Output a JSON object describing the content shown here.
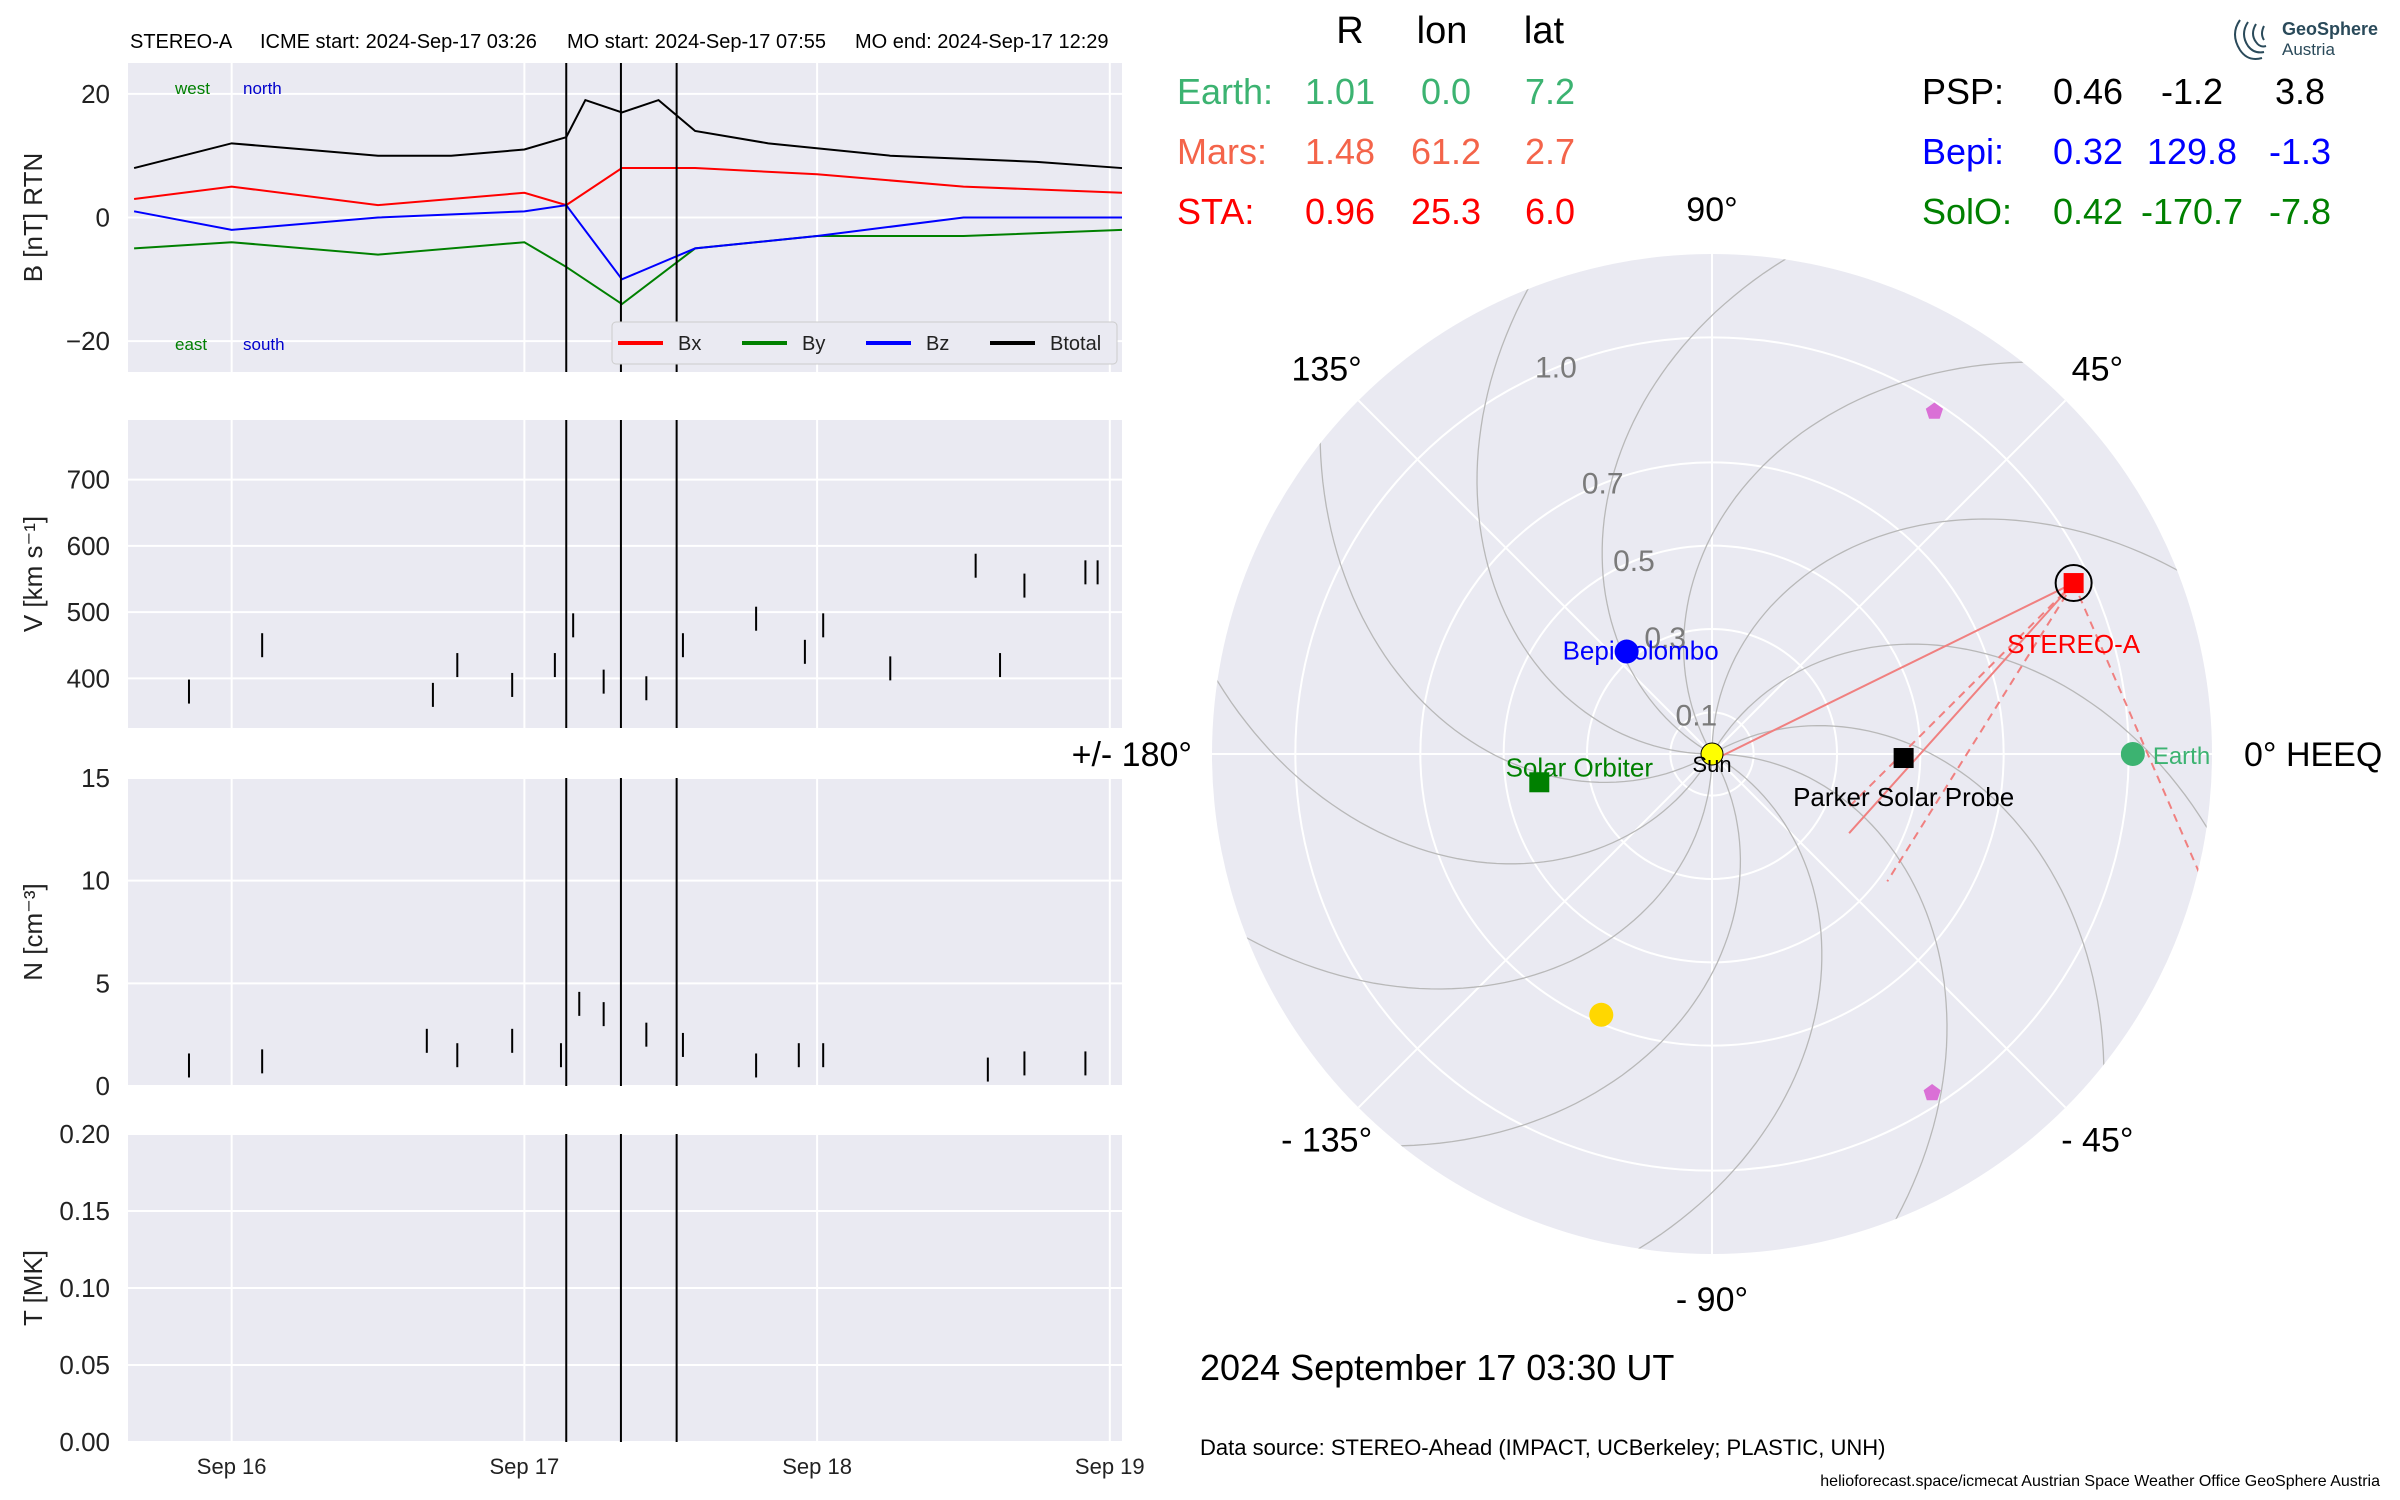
{
  "header": {
    "spacecraft": "STEREO-A",
    "icme_start": "ICME start: 2024-Sep-17 03:26",
    "mo_start": "MO start: 2024-Sep-17 07:55",
    "mo_end": "MO end: 2024-Sep-17 12:29"
  },
  "logo": {
    "line1": "GeoSphere",
    "line2": "Austria"
  },
  "positions_table": {
    "headers": [
      "R",
      "lon",
      "lat"
    ],
    "left_rows": [
      {
        "name": "Earth:",
        "r": "1.01",
        "lon": "0.0",
        "lat": "7.2",
        "color": "#3cb371"
      },
      {
        "name": "Mars:",
        "r": "1.48",
        "lon": "61.2",
        "lat": "2.7",
        "color": "#f4644a"
      },
      {
        "name": "STA:",
        "r": "0.96",
        "lon": "25.3",
        "lat": "6.0",
        "color": "#ff0000"
      }
    ],
    "right_rows": [
      {
        "name": "PSP:",
        "r": "0.46",
        "lon": "-1.2",
        "lat": "3.8",
        "color": "#000000"
      },
      {
        "name": "Bepi:",
        "r": "0.32",
        "lon": "129.8",
        "lat": "-1.3",
        "color": "#0000ff"
      },
      {
        "name": "SolO:",
        "r": "0.42",
        "lon": "-170.7",
        "lat": "-7.8",
        "color": "#008000"
      }
    ]
  },
  "polar_plot": {
    "angle_labels": [
      "90°",
      "45°",
      "0° HEEQ",
      "- 45°",
      "- 90°",
      "- 135°",
      "+/- 180°",
      "135°"
    ],
    "radial_labels": [
      "1.0",
      "0.7",
      "0.5",
      "0.3",
      "0.1"
    ],
    "rmax": 1.2,
    "bodies": [
      {
        "name": "Sun",
        "r": 0.0,
        "lon": 0.0,
        "color": "#ffff00",
        "marker": "circle"
      },
      {
        "name": "Earth",
        "r": 1.01,
        "lon": 0.0,
        "color": "#3cb371",
        "marker": "circle"
      },
      {
        "name": "STEREO-A",
        "r": 0.96,
        "lon": 25.3,
        "color": "#ff0000",
        "marker": "square"
      },
      {
        "name": "Parker Solar Probe",
        "r": 0.46,
        "lon": -1.2,
        "color": "#000000",
        "marker": "square"
      },
      {
        "name": "BepiColombo",
        "r": 0.32,
        "lon": 129.8,
        "color": "#0000ff",
        "marker": "circle"
      },
      {
        "name": "Solar Orbiter",
        "r": 0.42,
        "lon": -170.7,
        "color": "#008000",
        "marker": "square"
      },
      {
        "name": "",
        "r": 0.98,
        "lon": 57.0,
        "color": "#da70d6",
        "marker": "pentagon"
      },
      {
        "name": "",
        "r": 0.97,
        "lon": -57.0,
        "color": "#da70d6",
        "marker": "pentagon"
      },
      {
        "name": "",
        "r": 0.68,
        "lon": -113.0,
        "color": "#ffd700",
        "marker": "circle"
      }
    ]
  },
  "date_label": "2024 September 17  03:30 UT",
  "data_source": "Data source: STEREO-Ahead (IMPACT, UCBerkeley; PLASTIC, UNH)",
  "footer": "helioforecast.space/icmecat   Austrian Space Weather Office   GeoSphere Austria",
  "chart_data": [
    {
      "type": "line",
      "ylabel": "B [nT] RTN",
      "ylim": [
        -25,
        25
      ],
      "yticks": [
        "20",
        "0",
        "−20"
      ],
      "annotations": {
        "west": "west",
        "north": "north",
        "east": "east",
        "south": "south"
      },
      "legend": [
        "Bx",
        "By",
        "Bz",
        "Btotal"
      ],
      "legend_colors": [
        "#ff0000",
        "#008000",
        "#0000ff",
        "#000000"
      ],
      "legend_placement": "lower right",
      "xlim": [
        "2024-09-15 15:30",
        "2024-09-19 01:00"
      ],
      "series": [
        {
          "name": "Btotal",
          "color": "#000000",
          "x": [
            "2024-09-15 16:00",
            "2024-09-16 00:00",
            "2024-09-16 06:00",
            "2024-09-16 12:00",
            "2024-09-16 18:00",
            "2024-09-17 00:00",
            "2024-09-17 03:26",
            "2024-09-17 05:00",
            "2024-09-17 08:00",
            "2024-09-17 11:00",
            "2024-09-17 14:00",
            "2024-09-17 20:00",
            "2024-09-18 06:00",
            "2024-09-18 18:00",
            "2024-09-19 01:00"
          ],
          "y": [
            8,
            12,
            11,
            10,
            10,
            11,
            13,
            19,
            17,
            19,
            14,
            12,
            10,
            9,
            8
          ]
        },
        {
          "name": "Bx",
          "color": "#ff0000",
          "x": [
            "2024-09-15 16:00",
            "2024-09-16 00:00",
            "2024-09-16 12:00",
            "2024-09-17 00:00",
            "2024-09-17 03:26",
            "2024-09-17 08:00",
            "2024-09-17 14:00",
            "2024-09-18 00:00",
            "2024-09-18 12:00",
            "2024-09-19 01:00"
          ],
          "y": [
            3,
            5,
            2,
            4,
            2,
            8,
            8,
            7,
            5,
            4
          ]
        },
        {
          "name": "By",
          "color": "#008000",
          "x": [
            "2024-09-15 16:00",
            "2024-09-16 00:00",
            "2024-09-16 12:00",
            "2024-09-17 00:00",
            "2024-09-17 03:26",
            "2024-09-17 08:00",
            "2024-09-17 14:00",
            "2024-09-18 00:00",
            "2024-09-18 12:00",
            "2024-09-19 01:00"
          ],
          "y": [
            -5,
            -4,
            -6,
            -4,
            -8,
            -14,
            -5,
            -3,
            -3,
            -2
          ]
        },
        {
          "name": "Bz",
          "color": "#0000ff",
          "x": [
            "2024-09-15 16:00",
            "2024-09-16 00:00",
            "2024-09-16 12:00",
            "2024-09-17 00:00",
            "2024-09-17 03:26",
            "2024-09-17 08:00",
            "2024-09-17 14:00",
            "2024-09-18 00:00",
            "2024-09-18 12:00",
            "2024-09-19 01:00"
          ],
          "y": [
            1,
            -2,
            0,
            1,
            2,
            -10,
            -5,
            -3,
            0,
            0
          ]
        }
      ]
    },
    {
      "type": "line",
      "ylabel": "V [km s⁻¹]",
      "ylim": [
        325,
        790
      ],
      "yticks": [
        "700",
        "600",
        "500",
        "400"
      ],
      "xlim": [
        "2024-09-15 15:30",
        "2024-09-19 01:00"
      ],
      "series": [
        {
          "name": "",
          "color": "#000000",
          "x": [
            "2024-09-15 20:30",
            "2024-09-16 02:30",
            "2024-09-16 16:30",
            "2024-09-16 18:30",
            "2024-09-16 23:00",
            "2024-09-17 02:30",
            "2024-09-17 04:00",
            "2024-09-17 06:30",
            "2024-09-17 10:00",
            "2024-09-17 13:00",
            "2024-09-17 19:00",
            "2024-09-17 23:00",
            "2024-09-18 00:30",
            "2024-09-18 06:00",
            "2024-09-18 13:00",
            "2024-09-18 15:00",
            "2024-09-18 17:00",
            "2024-09-18 22:00",
            "2024-09-18 23:00"
          ],
          "y": [
            380,
            450,
            375,
            420,
            390,
            420,
            480,
            395,
            385,
            450,
            490,
            440,
            480,
            415,
            570,
            420,
            540,
            560,
            560
          ]
        }
      ]
    },
    {
      "type": "line",
      "ylabel": "N [cm⁻³]",
      "ylim": [
        0,
        15
      ],
      "yticks": [
        "15",
        "10",
        "5",
        "0"
      ],
      "xlim": [
        "2024-09-15 15:30",
        "2024-09-19 01:00"
      ],
      "series": [
        {
          "name": "",
          "color": "#000000",
          "x": [
            "2024-09-15 20:30",
            "2024-09-16 02:30",
            "2024-09-16 16:00",
            "2024-09-16 18:30",
            "2024-09-16 23:00",
            "2024-09-17 03:00",
            "2024-09-17 04:30",
            "2024-09-17 06:30",
            "2024-09-17 10:00",
            "2024-09-17 13:00",
            "2024-09-17 19:00",
            "2024-09-17 22:30",
            "2024-09-18 00:30",
            "2024-09-18 14:00",
            "2024-09-18 17:00",
            "2024-09-18 22:00"
          ],
          "y": [
            1.0,
            1.2,
            2.2,
            1.5,
            2.2,
            1.5,
            4.0,
            3.5,
            2.5,
            2.0,
            1.0,
            1.5,
            1.5,
            0.8,
            1.1,
            1.1
          ]
        }
      ]
    },
    {
      "type": "line",
      "ylabel": "T [MK]",
      "ylim": [
        0,
        0.2
      ],
      "yticks": [
        "0.20",
        "0.15",
        "0.10",
        "0.05",
        "0.00"
      ],
      "xlim": [
        "2024-09-15 15:30",
        "2024-09-19 01:00"
      ],
      "xticks": [
        "Sep 16",
        "Sep 17",
        "Sep 18",
        "Sep 19"
      ],
      "series": []
    }
  ]
}
